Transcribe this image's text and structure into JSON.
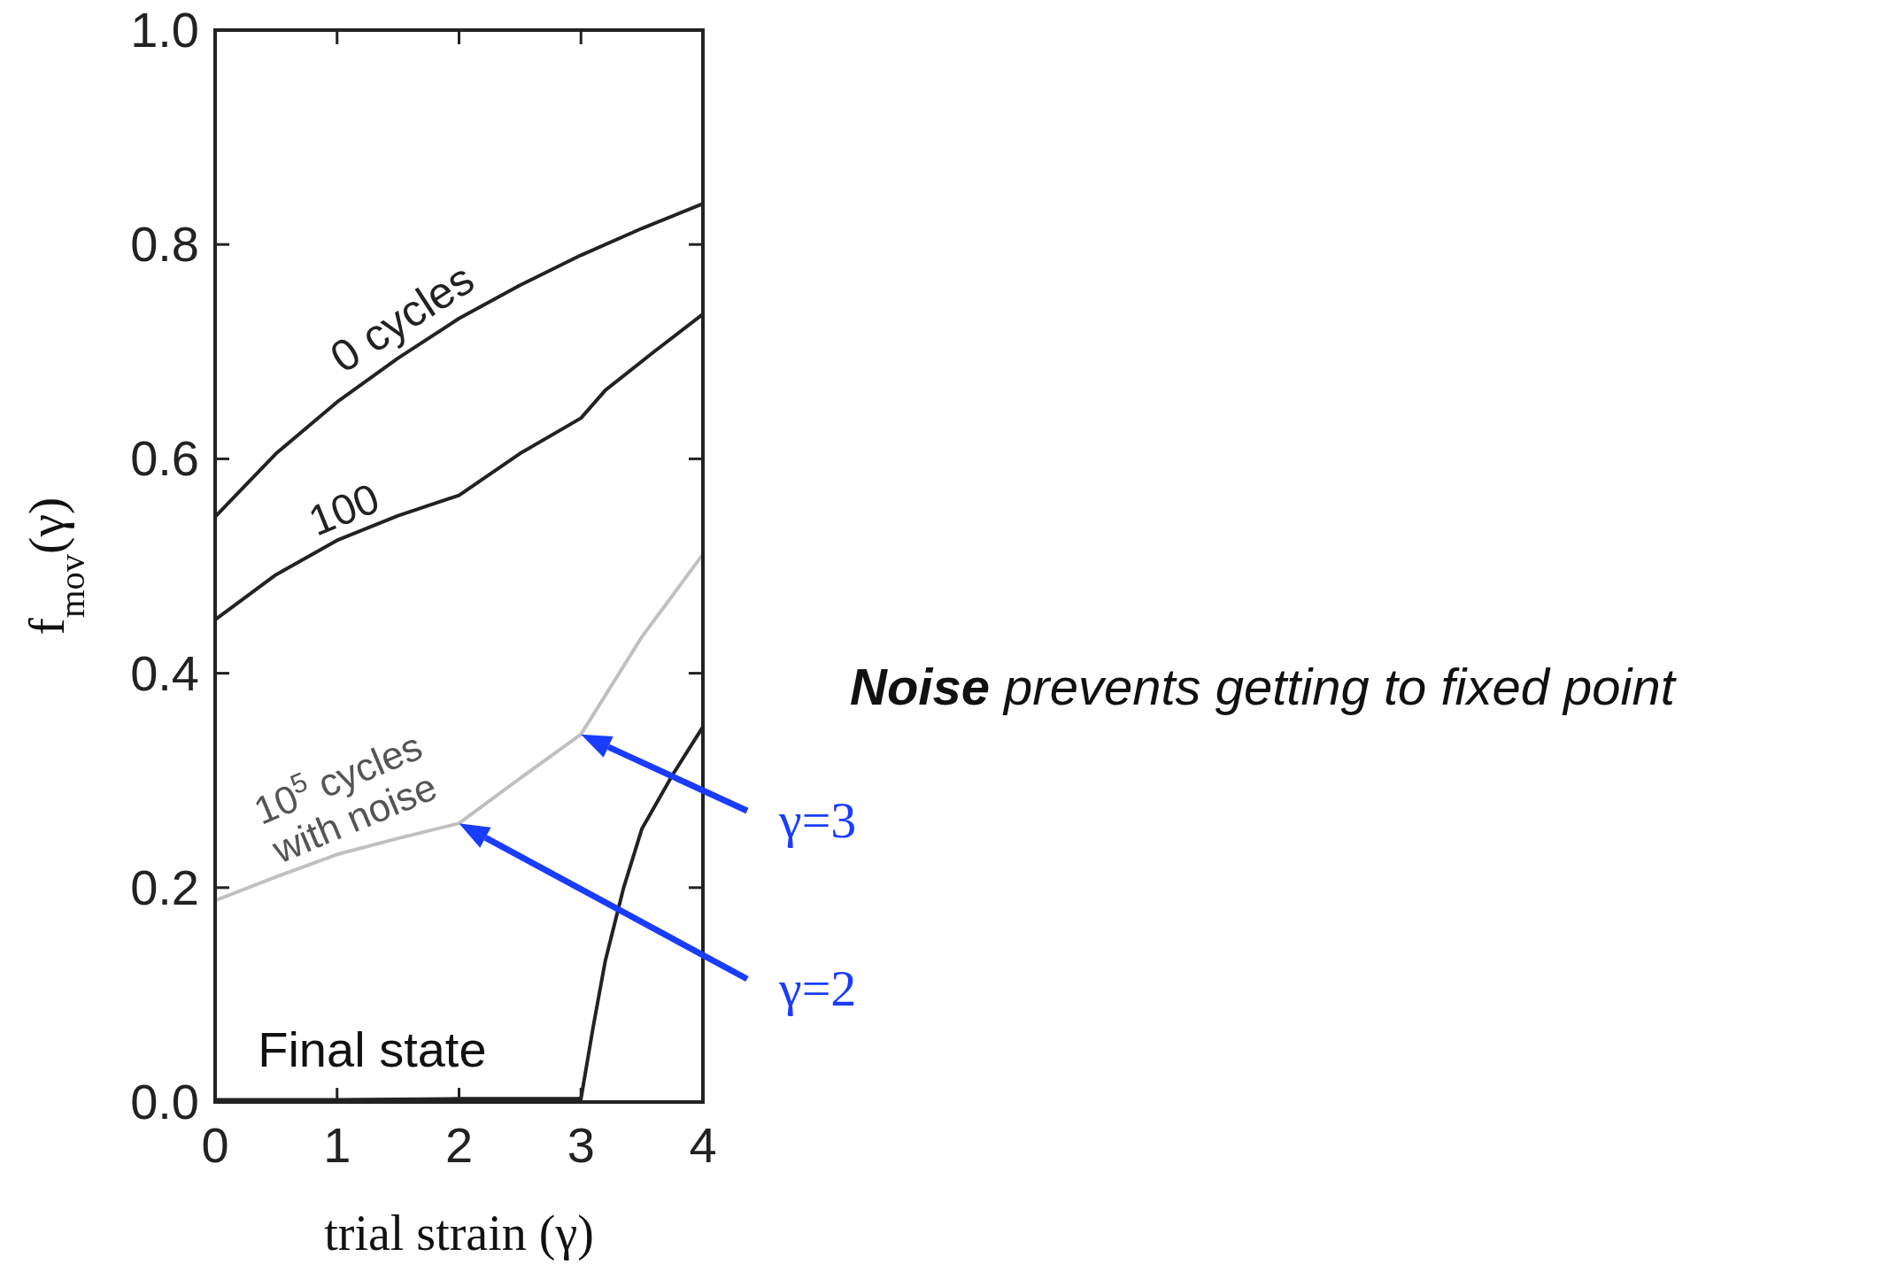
{
  "chart_data": {
    "type": "line",
    "xlabel": "trial strain (γ)",
    "ylabel": "f$_{mov}$(γ)",
    "xlim": [
      0,
      4
    ],
    "ylim": [
      0,
      1
    ],
    "xticks": [
      0,
      1,
      2,
      3,
      4
    ],
    "yticks": [
      {
        "value": 0,
        "label": "0.0"
      },
      {
        "value": 0.2,
        "label": "0.2"
      },
      {
        "value": 0.4,
        "label": "0.4"
      },
      {
        "value": 0.6,
        "label": "0.6"
      },
      {
        "value": 0.8,
        "label": "0.8"
      },
      {
        "value": 1,
        "label": "1.0"
      }
    ],
    "grid": false,
    "legend": false,
    "marker": "none",
    "line_style": "solid",
    "series": [
      {
        "name": "0 cycles",
        "color": "#222222",
        "x": [
          0,
          0.5,
          1,
          1.5,
          2,
          2.5,
          3,
          3.5,
          4
        ],
        "values": [
          0.546,
          0.605,
          0.653,
          0.694,
          0.731,
          0.762,
          0.79,
          0.815,
          0.838
        ]
      },
      {
        "name": "100",
        "color": "#222222",
        "x": [
          0,
          0.5,
          1,
          1.5,
          2,
          2.5,
          3,
          3.2,
          3.6,
          4
        ],
        "values": [
          0.45,
          0.492,
          0.524,
          0.547,
          0.566,
          0.605,
          0.638,
          0.664,
          0.7,
          0.735
        ]
      },
      {
        "name": "10$^{5}$ cycles\nwith noise",
        "color": "#c0c0c0",
        "x": [
          0,
          0.5,
          1,
          1.5,
          2,
          2.5,
          3,
          3.5,
          4
        ],
        "values": [
          0.188,
          0.21,
          0.231,
          0.246,
          0.26,
          0.302,
          0.343,
          0.434,
          0.511
        ]
      },
      {
        "color": "#222222",
        "x": [
          0,
          1,
          2,
          3,
          3.1,
          3.2,
          3.35,
          3.5,
          3.75,
          4
        ],
        "values": [
          0.002,
          0.002,
          0.003,
          0.003,
          0.07,
          0.132,
          0.2,
          0.255,
          0.305,
          0.35
        ]
      }
    ],
    "annotations": [
      "Final state",
      "γ=3",
      "γ=2",
      "Noise prevents getting to fixed point"
    ]
  }
}
